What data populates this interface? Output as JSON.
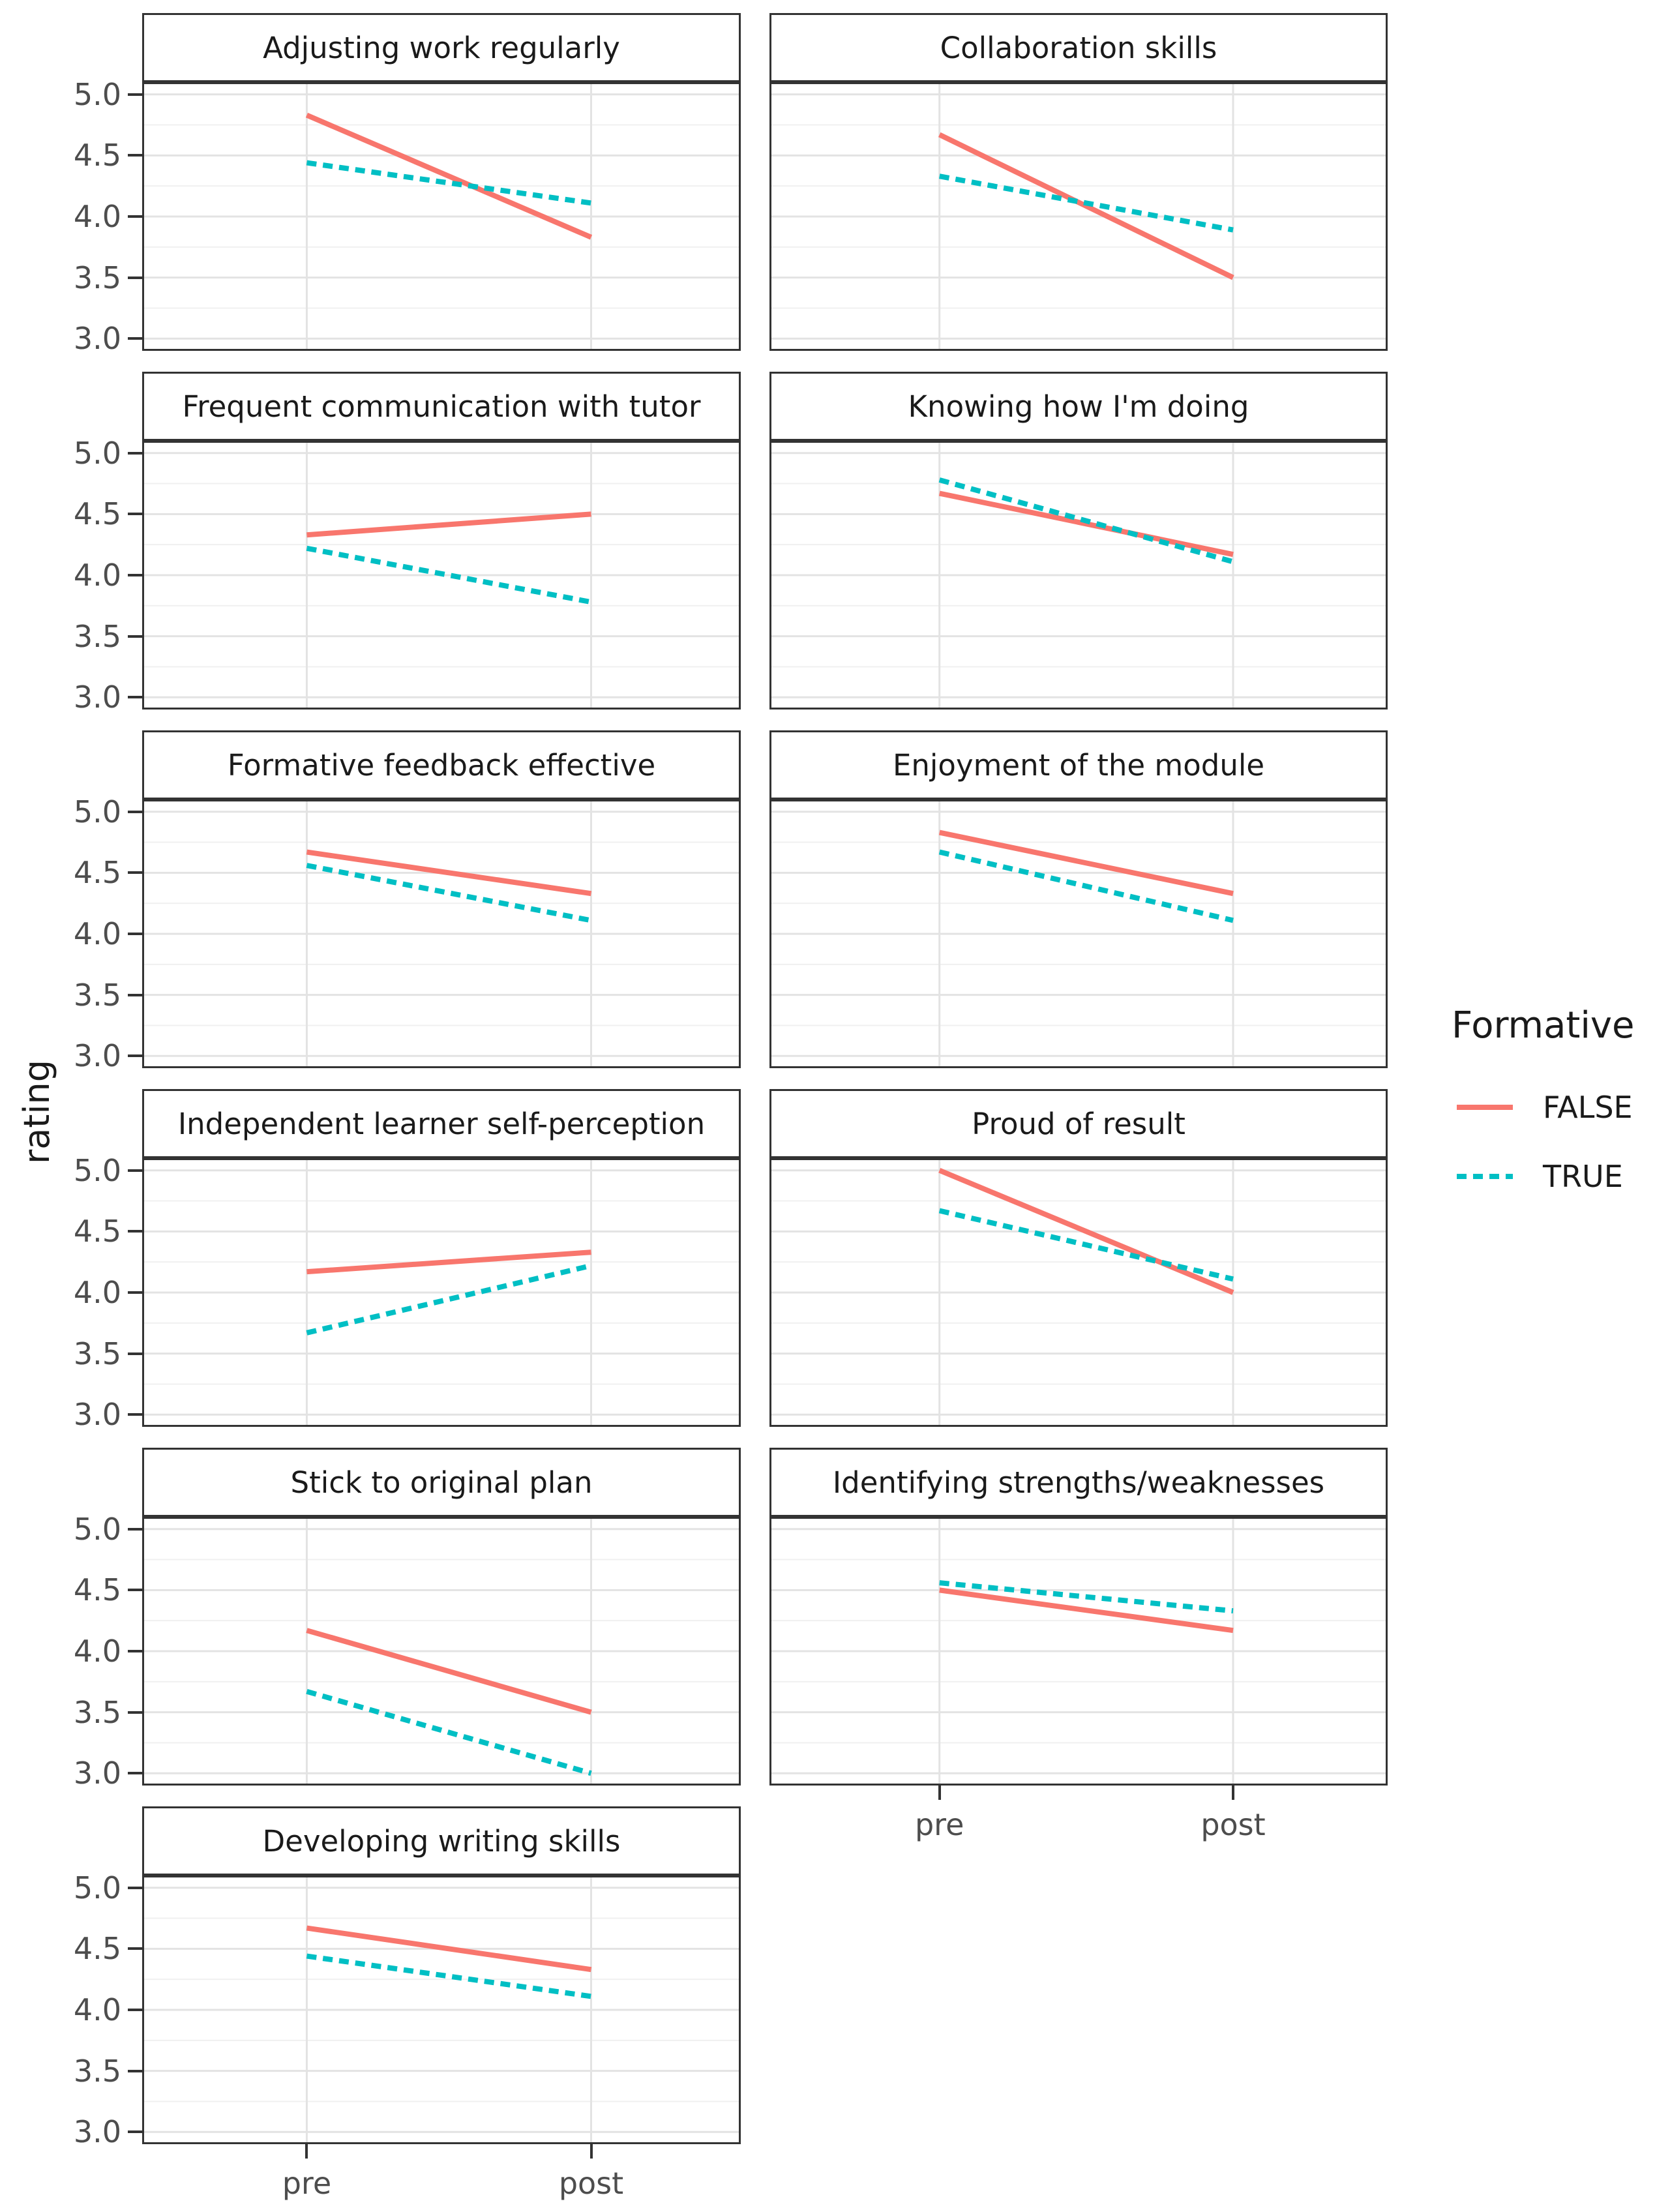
{
  "chart_data": {
    "type": "line",
    "title": "",
    "ylabel": "rating",
    "x_categories": [
      "pre",
      "post"
    ],
    "y_ticks": [
      5.0,
      4.5,
      4.0,
      3.5,
      3.0
    ],
    "y_tick_labels": [
      "5.0",
      "4.5",
      "4.0",
      "3.5",
      "3.0"
    ],
    "y_minor_ticks": [
      4.75,
      4.25,
      3.75,
      3.25
    ],
    "ylim": [
      2.9,
      5.1
    ],
    "grid": "major+minor horizontal, major vertical at categories",
    "legend_position": "right",
    "legend": {
      "title": "Formative",
      "entries": [
        {
          "label": "FALSE",
          "color": "#F8766D",
          "linetype": "solid"
        },
        {
          "label": "TRUE",
          "color": "#00BFC4",
          "linetype": "dashed"
        }
      ]
    },
    "colors": {
      "false_line": "#F8766D",
      "true_line": "#00BFC4",
      "panel_border": "#333333",
      "grid_major": "#e3e3e3",
      "grid_minor": "#f0f0f0",
      "tick_text": "#4d4d4d",
      "strip_text": "#1a1a1a"
    },
    "facets": [
      {
        "title": "Adjusting work regularly",
        "row": 0,
        "col": 0,
        "series": [
          {
            "name": "FALSE",
            "values": [
              4.83,
              3.83
            ]
          },
          {
            "name": "TRUE",
            "values": [
              4.44,
              4.11
            ]
          }
        ]
      },
      {
        "title": "Collaboration skills",
        "row": 0,
        "col": 1,
        "series": [
          {
            "name": "FALSE",
            "values": [
              4.67,
              3.5
            ]
          },
          {
            "name": "TRUE",
            "values": [
              4.33,
              3.89
            ]
          }
        ]
      },
      {
        "title": "Frequent communication with tutor",
        "row": 1,
        "col": 0,
        "series": [
          {
            "name": "FALSE",
            "values": [
              4.33,
              4.5
            ]
          },
          {
            "name": "TRUE",
            "values": [
              4.22,
              3.78
            ]
          }
        ]
      },
      {
        "title": "Knowing how I'm doing",
        "row": 1,
        "col": 1,
        "series": [
          {
            "name": "FALSE",
            "values": [
              4.67,
              4.17
            ]
          },
          {
            "name": "TRUE",
            "values": [
              4.78,
              4.11
            ]
          }
        ]
      },
      {
        "title": "Formative feedback effective",
        "row": 2,
        "col": 0,
        "series": [
          {
            "name": "FALSE",
            "values": [
              4.67,
              4.33
            ]
          },
          {
            "name": "TRUE",
            "values": [
              4.56,
              4.11
            ]
          }
        ]
      },
      {
        "title": "Enjoyment of the module",
        "row": 2,
        "col": 1,
        "series": [
          {
            "name": "FALSE",
            "values": [
              4.83,
              4.33
            ]
          },
          {
            "name": "TRUE",
            "values": [
              4.67,
              4.11
            ]
          }
        ]
      },
      {
        "title": "Independent learner self-perception",
        "row": 3,
        "col": 0,
        "series": [
          {
            "name": "FALSE",
            "values": [
              4.17,
              4.33
            ]
          },
          {
            "name": "TRUE",
            "values": [
              3.67,
              4.22
            ]
          }
        ]
      },
      {
        "title": "Proud of result",
        "row": 3,
        "col": 1,
        "series": [
          {
            "name": "FALSE",
            "values": [
              5.0,
              4.0
            ]
          },
          {
            "name": "TRUE",
            "values": [
              4.67,
              4.11
            ]
          }
        ]
      },
      {
        "title": "Stick to original plan",
        "row": 4,
        "col": 0,
        "series": [
          {
            "name": "FALSE",
            "values": [
              4.17,
              3.5
            ]
          },
          {
            "name": "TRUE",
            "values": [
              3.67,
              3.0
            ]
          }
        ]
      },
      {
        "title": "Identifying strengths/weaknesses",
        "row": 4,
        "col": 1,
        "series": [
          {
            "name": "FALSE",
            "values": [
              4.5,
              4.17
            ]
          },
          {
            "name": "TRUE",
            "values": [
              4.56,
              4.33
            ]
          }
        ]
      },
      {
        "title": "Developing writing skills",
        "row": 5,
        "col": 0,
        "series": [
          {
            "name": "FALSE",
            "values": [
              4.67,
              4.33
            ]
          },
          {
            "name": "TRUE",
            "values": [
              4.44,
              4.11
            ]
          }
        ]
      }
    ]
  }
}
